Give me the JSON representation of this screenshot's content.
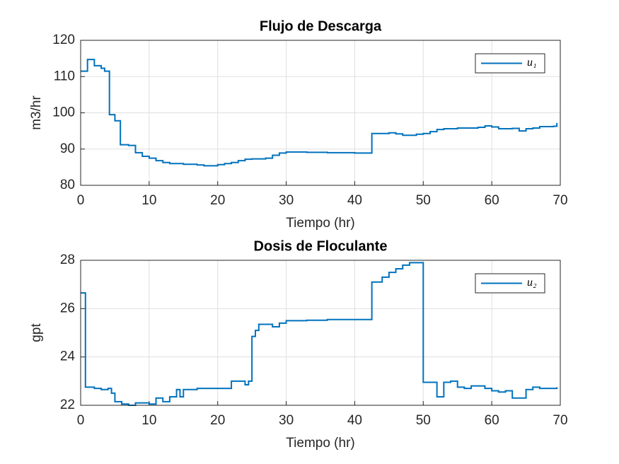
{
  "chart_data": [
    {
      "type": "line",
      "step": true,
      "title": "Flujo de Descarga",
      "xlabel": "Tiempo (hr)",
      "ylabel": "m3/hr",
      "xlim": [
        0,
        70
      ],
      "xticks": [
        0,
        10,
        20,
        30,
        40,
        50,
        60,
        70
      ],
      "ylim": [
        80,
        120
      ],
      "yticks": [
        80,
        90,
        100,
        110,
        120
      ],
      "grid": true,
      "legend": "northeast",
      "x": [
        0,
        1,
        2,
        3,
        3.5,
        4.2,
        5,
        5.8,
        7,
        8,
        9,
        10,
        11,
        12,
        13,
        15,
        17,
        18,
        20,
        21,
        22,
        23,
        24,
        25,
        27,
        28,
        29,
        30,
        33,
        36,
        40,
        42.5,
        45,
        46,
        47,
        49,
        50,
        51,
        52,
        53,
        55,
        58,
        59,
        60,
        61,
        63,
        64,
        65,
        66,
        67,
        69,
        69.5
      ],
      "series": [
        {
          "name": "u₁",
          "color": "#0072bd",
          "values": [
            111.5,
            114.7,
            113,
            112.3,
            111.5,
            99.5,
            97.8,
            91.2,
            91,
            89,
            88,
            87.5,
            86.8,
            86.3,
            86,
            85.8,
            85.6,
            85.4,
            85.7,
            86,
            86.3,
            86.8,
            87.2,
            87.3,
            87.5,
            88.3,
            88.9,
            89.2,
            89.1,
            89,
            88.9,
            94.3,
            94.5,
            94.2,
            93.8,
            94.1,
            94.3,
            94.8,
            95.4,
            95.6,
            95.8,
            96,
            96.4,
            96.1,
            95.6,
            95.7,
            95,
            95.6,
            95.8,
            96.2,
            96.3,
            97.2
          ]
        }
      ]
    },
    {
      "type": "line",
      "step": true,
      "title": "Dosis de Floculante",
      "xlabel": "Tiempo (hr)",
      "ylabel": "gpt",
      "xlim": [
        0,
        70
      ],
      "xticks": [
        0,
        10,
        20,
        30,
        40,
        50,
        60,
        70
      ],
      "ylim": [
        22,
        28
      ],
      "yticks": [
        22,
        24,
        26,
        28
      ],
      "grid": true,
      "legend": "northeast",
      "x": [
        0,
        0.7,
        2,
        3,
        4,
        4.5,
        5,
        6,
        7,
        8,
        10,
        11,
        12,
        13,
        14,
        14.5,
        15,
        17,
        22,
        24,
        24.5,
        25,
        25.5,
        26,
        28,
        29,
        30,
        33,
        36,
        42.5,
        44,
        45,
        46,
        47,
        48,
        50,
        52,
        53,
        54,
        55,
        56,
        57,
        59,
        60,
        61,
        62,
        63,
        65,
        66,
        67,
        69.5
      ],
      "series": [
        {
          "name": "u₂",
          "color": "#0072bd",
          "values": [
            26.65,
            22.75,
            22.7,
            22.65,
            22.7,
            22.5,
            22.15,
            22.05,
            22,
            22.1,
            22.05,
            22.3,
            22.15,
            22.35,
            22.65,
            22.35,
            22.65,
            22.7,
            23,
            22.85,
            23,
            24.85,
            25.1,
            25.35,
            25.25,
            25.4,
            25.5,
            25.52,
            25.55,
            27.1,
            27.3,
            27.5,
            27.65,
            27.8,
            27.9,
            22.95,
            22.35,
            22.95,
            23,
            22.75,
            22.7,
            22.8,
            22.7,
            22.6,
            22.55,
            22.6,
            22.3,
            22.65,
            22.75,
            22.7,
            22.75
          ]
        }
      ]
    }
  ]
}
